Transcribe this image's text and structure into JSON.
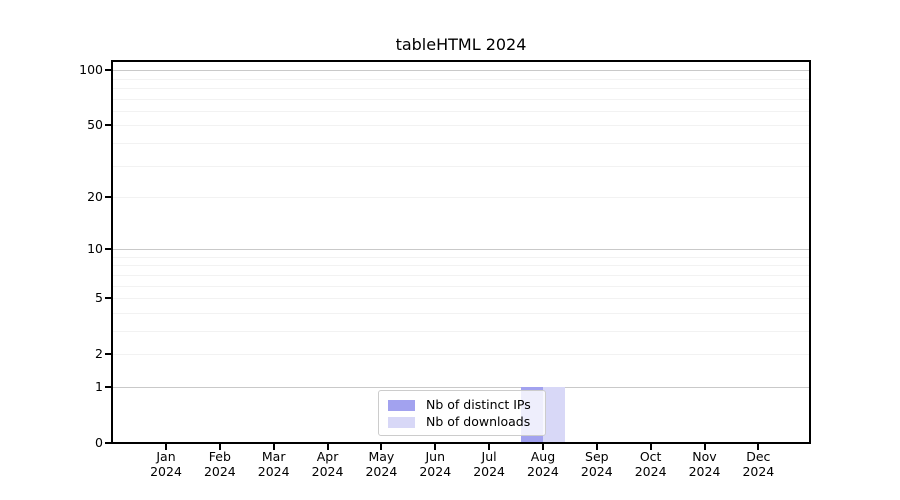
{
  "chart_data": {
    "type": "bar",
    "title": "tableHTML 2024",
    "x_months": [
      "Jan",
      "Feb",
      "Mar",
      "Apr",
      "May",
      "Jun",
      "Jul",
      "Aug",
      "Sep",
      "Oct",
      "Nov",
      "Dec"
    ],
    "x_year": "2024",
    "series": [
      {
        "name": "Nb of distinct IPs",
        "color": "#a2a2ef",
        "values": [
          0,
          0,
          0,
          0,
          0,
          0,
          0,
          1,
          0,
          0,
          0,
          0
        ]
      },
      {
        "name": "Nb of downloads",
        "color": "#d8d8f7",
        "values": [
          0,
          0,
          0,
          0,
          0,
          0,
          0,
          1,
          0,
          0,
          0,
          0
        ]
      }
    ],
    "y_ticks": [
      0,
      1,
      2,
      5,
      10,
      20,
      50,
      100
    ],
    "y_scale": "log1p",
    "ylim": [
      0,
      113
    ],
    "grid_minor": [
      2,
      3,
      4,
      5,
      6,
      7,
      8,
      9,
      20,
      30,
      40,
      50,
      60,
      70,
      80,
      90
    ],
    "grid_major": [
      1,
      10,
      100
    ],
    "grid_on": true,
    "legend_position": "lower center",
    "colors": {
      "grid_minor": "#f2f2f2",
      "grid_major": "#c9c9c9",
      "axis": "#000000",
      "text": "#000000",
      "legend_border": "#cccccc",
      "background": "#ffffff"
    }
  }
}
